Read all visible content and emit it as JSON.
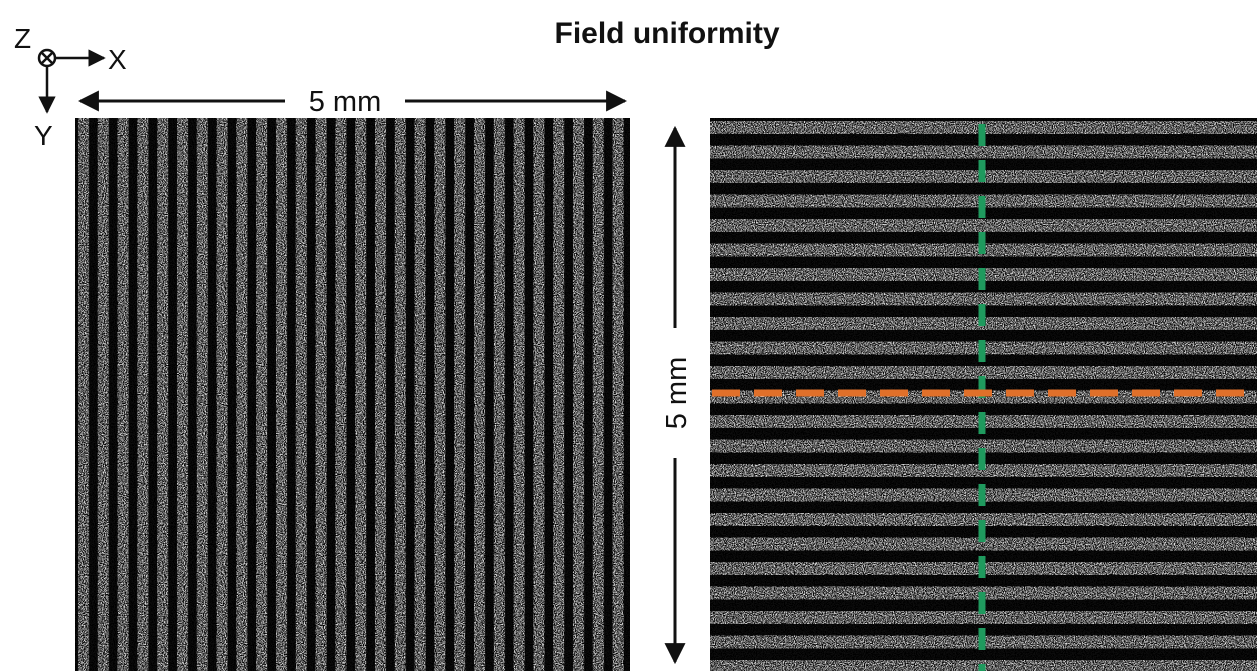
{
  "title": "Field uniformity",
  "axes": {
    "z": "Z",
    "x": "X",
    "y": "Y"
  },
  "scale_bars": {
    "horizontal": "5 mm",
    "vertical": "5 mm"
  }
}
